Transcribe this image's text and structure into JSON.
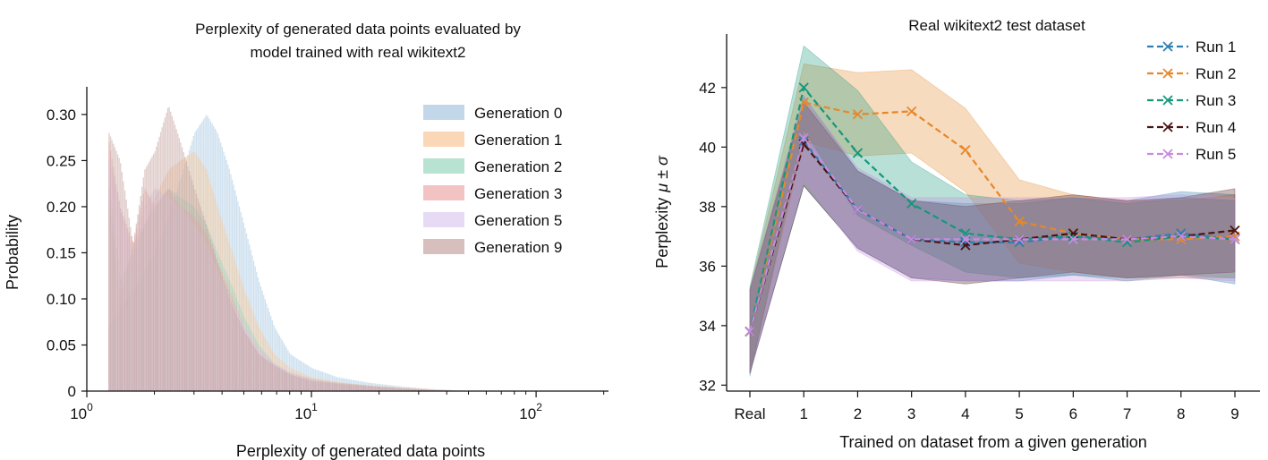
{
  "chart_data": [
    {
      "type": "histogram",
      "title_lines": [
        "Perplexity of generated data points evaluated by",
        "model trained with real wikitext2"
      ],
      "xlabel": "Perplexity of generated data points",
      "ylabel": "Probability",
      "xscale": "log",
      "xlim": [
        1.0,
        210
      ],
      "ylim": [
        0,
        0.33
      ],
      "x_ticks": [
        {
          "base": "10",
          "exp": "0",
          "value": 1
        },
        {
          "base": "10",
          "exp": "1",
          "value": 10
        },
        {
          "base": "10",
          "exp": "2",
          "value": 100
        }
      ],
      "y_ticks": [
        {
          "label": "0",
          "value": 0
        },
        {
          "label": "0.05",
          "value": 0.05
        },
        {
          "label": "0.10",
          "value": 0.1
        },
        {
          "label": "0.15",
          "value": 0.15
        },
        {
          "label": "0.20",
          "value": 0.2
        },
        {
          "label": "0.25",
          "value": 0.25
        },
        {
          "label": "0.30",
          "value": 0.3
        }
      ],
      "legend_position": "top-right",
      "grid": false,
      "series": [
        {
          "name": "Generation 0",
          "color": "#a8c8e1",
          "x": [
            1.25,
            1.4,
            1.6,
            1.8,
            2.0,
            2.3,
            2.6,
            3.0,
            3.4,
            3.8,
            4.3,
            5.0,
            5.8,
            6.8,
            8,
            10,
            13,
            18,
            25,
            35,
            50
          ],
          "values": [
            0.07,
            0.09,
            0.11,
            0.13,
            0.15,
            0.19,
            0.23,
            0.28,
            0.3,
            0.28,
            0.24,
            0.18,
            0.12,
            0.07,
            0.04,
            0.025,
            0.015,
            0.009,
            0.005,
            0.002,
            0.0
          ]
        },
        {
          "name": "Generation 1",
          "color": "#f8c898",
          "x": [
            1.25,
            1.4,
            1.6,
            1.8,
            2.0,
            2.3,
            2.6,
            3.0,
            3.4,
            3.8,
            4.3,
            5.0,
            5.8,
            6.8,
            8,
            10,
            13,
            18,
            25,
            35,
            50
          ],
          "values": [
            0.2,
            0.1,
            0.16,
            0.18,
            0.21,
            0.24,
            0.25,
            0.26,
            0.24,
            0.2,
            0.16,
            0.11,
            0.07,
            0.04,
            0.025,
            0.015,
            0.01,
            0.006,
            0.004,
            0.002,
            0.0
          ]
        },
        {
          "name": "Generation 2",
          "color": "#9ad6bd",
          "x": [
            1.25,
            1.4,
            1.6,
            1.8,
            2.0,
            2.3,
            2.6,
            3.0,
            3.4,
            3.8,
            4.3,
            5.0,
            5.8,
            6.8,
            8,
            10,
            13,
            18,
            25,
            35,
            50
          ],
          "values": [
            0.22,
            0.12,
            0.15,
            0.18,
            0.2,
            0.22,
            0.21,
            0.2,
            0.18,
            0.15,
            0.12,
            0.08,
            0.05,
            0.03,
            0.02,
            0.013,
            0.009,
            0.006,
            0.003,
            0.001,
            0.0
          ]
        },
        {
          "name": "Generation 3",
          "color": "#eea8a8",
          "x": [
            1.25,
            1.4,
            1.6,
            1.8,
            2.0,
            2.3,
            2.6,
            3.0,
            3.4,
            3.8,
            4.3,
            5.0,
            5.8,
            6.8,
            8,
            10,
            13,
            18,
            25,
            35,
            50
          ],
          "values": [
            0.27,
            0.2,
            0.16,
            0.22,
            0.2,
            0.22,
            0.2,
            0.19,
            0.17,
            0.14,
            0.11,
            0.07,
            0.045,
            0.03,
            0.02,
            0.013,
            0.009,
            0.006,
            0.003,
            0.001,
            0.0
          ]
        },
        {
          "name": "Generation 5",
          "color": "#dccaf0",
          "x": [
            1.25,
            1.4,
            1.6,
            1.8,
            2.0,
            2.3,
            2.6,
            3.0,
            3.4,
            3.8,
            4.3,
            5.0,
            5.8,
            6.8,
            8,
            10,
            13,
            18,
            25,
            35,
            50
          ],
          "values": [
            0.25,
            0.2,
            0.15,
            0.2,
            0.22,
            0.21,
            0.2,
            0.18,
            0.16,
            0.13,
            0.1,
            0.07,
            0.045,
            0.03,
            0.02,
            0.012,
            0.008,
            0.005,
            0.003,
            0.001,
            0.0
          ]
        },
        {
          "name": "Generation 9",
          "color": "#c4a4a0",
          "x": [
            1.25,
            1.4,
            1.6,
            1.8,
            2.0,
            2.3,
            2.6,
            3.0,
            3.4,
            3.8,
            4.3,
            5.0,
            5.8,
            6.8,
            8,
            10,
            13,
            18,
            25,
            35,
            50
          ],
          "values": [
            0.28,
            0.25,
            0.16,
            0.24,
            0.26,
            0.31,
            0.27,
            0.22,
            0.18,
            0.14,
            0.1,
            0.065,
            0.04,
            0.028,
            0.018,
            0.011,
            0.008,
            0.005,
            0.003,
            0.001,
            0.0
          ]
        }
      ]
    },
    {
      "type": "line",
      "title": "Real wikitext2 test dataset",
      "xlabel": "Trained on dataset from a given generation",
      "ylabel": "Perplexity",
      "ylabel_math": "μ ± σ",
      "categories": [
        "Real",
        "1",
        "2",
        "3",
        "4",
        "5",
        "6",
        "7",
        "8",
        "9"
      ],
      "ylim": [
        31.8,
        43.8
      ],
      "y_ticks": [
        32,
        34,
        36,
        38,
        40,
        42
      ],
      "legend_position": "top-right",
      "grid": false,
      "series": [
        {
          "name": "Run 1",
          "color": "#2e7fb0",
          "values": [
            33.8,
            40.2,
            37.9,
            36.9,
            36.8,
            36.8,
            37.0,
            36.9,
            37.1,
            36.9
          ],
          "std": [
            1.4,
            1.5,
            1.3,
            1.3,
            1.3,
            1.3,
            1.3,
            1.3,
            1.4,
            1.5
          ]
        },
        {
          "name": "Run 2",
          "color": "#e6882a",
          "values": [
            33.8,
            41.5,
            41.1,
            41.2,
            39.9,
            37.5,
            37.1,
            36.9,
            36.9,
            37.0
          ],
          "std": [
            1.4,
            1.3,
            1.4,
            1.4,
            1.4,
            1.4,
            1.3,
            1.3,
            1.3,
            1.4
          ]
        },
        {
          "name": "Run 3",
          "color": "#16977a",
          "values": [
            33.8,
            42.0,
            39.8,
            38.1,
            37.1,
            36.9,
            37.0,
            36.8,
            37.0,
            36.9
          ],
          "std": [
            1.5,
            1.4,
            2.1,
            1.4,
            1.3,
            1.3,
            1.3,
            1.3,
            1.3,
            1.3
          ]
        },
        {
          "name": "Run 4",
          "color": "#4a1414",
          "values": [
            33.8,
            40.1,
            37.9,
            36.9,
            36.7,
            36.9,
            37.1,
            36.9,
            37.0,
            37.2
          ],
          "std": [
            1.4,
            1.4,
            1.3,
            1.3,
            1.3,
            1.3,
            1.3,
            1.3,
            1.3,
            1.4
          ]
        },
        {
          "name": "Run 5",
          "color": "#c58ce0",
          "values": [
            33.8,
            40.3,
            37.9,
            36.9,
            36.9,
            36.9,
            36.9,
            36.9,
            37.0,
            36.9
          ],
          "std": [
            1.4,
            1.4,
            1.4,
            1.4,
            1.4,
            1.4,
            1.4,
            1.4,
            1.4,
            1.4
          ]
        }
      ]
    }
  ]
}
